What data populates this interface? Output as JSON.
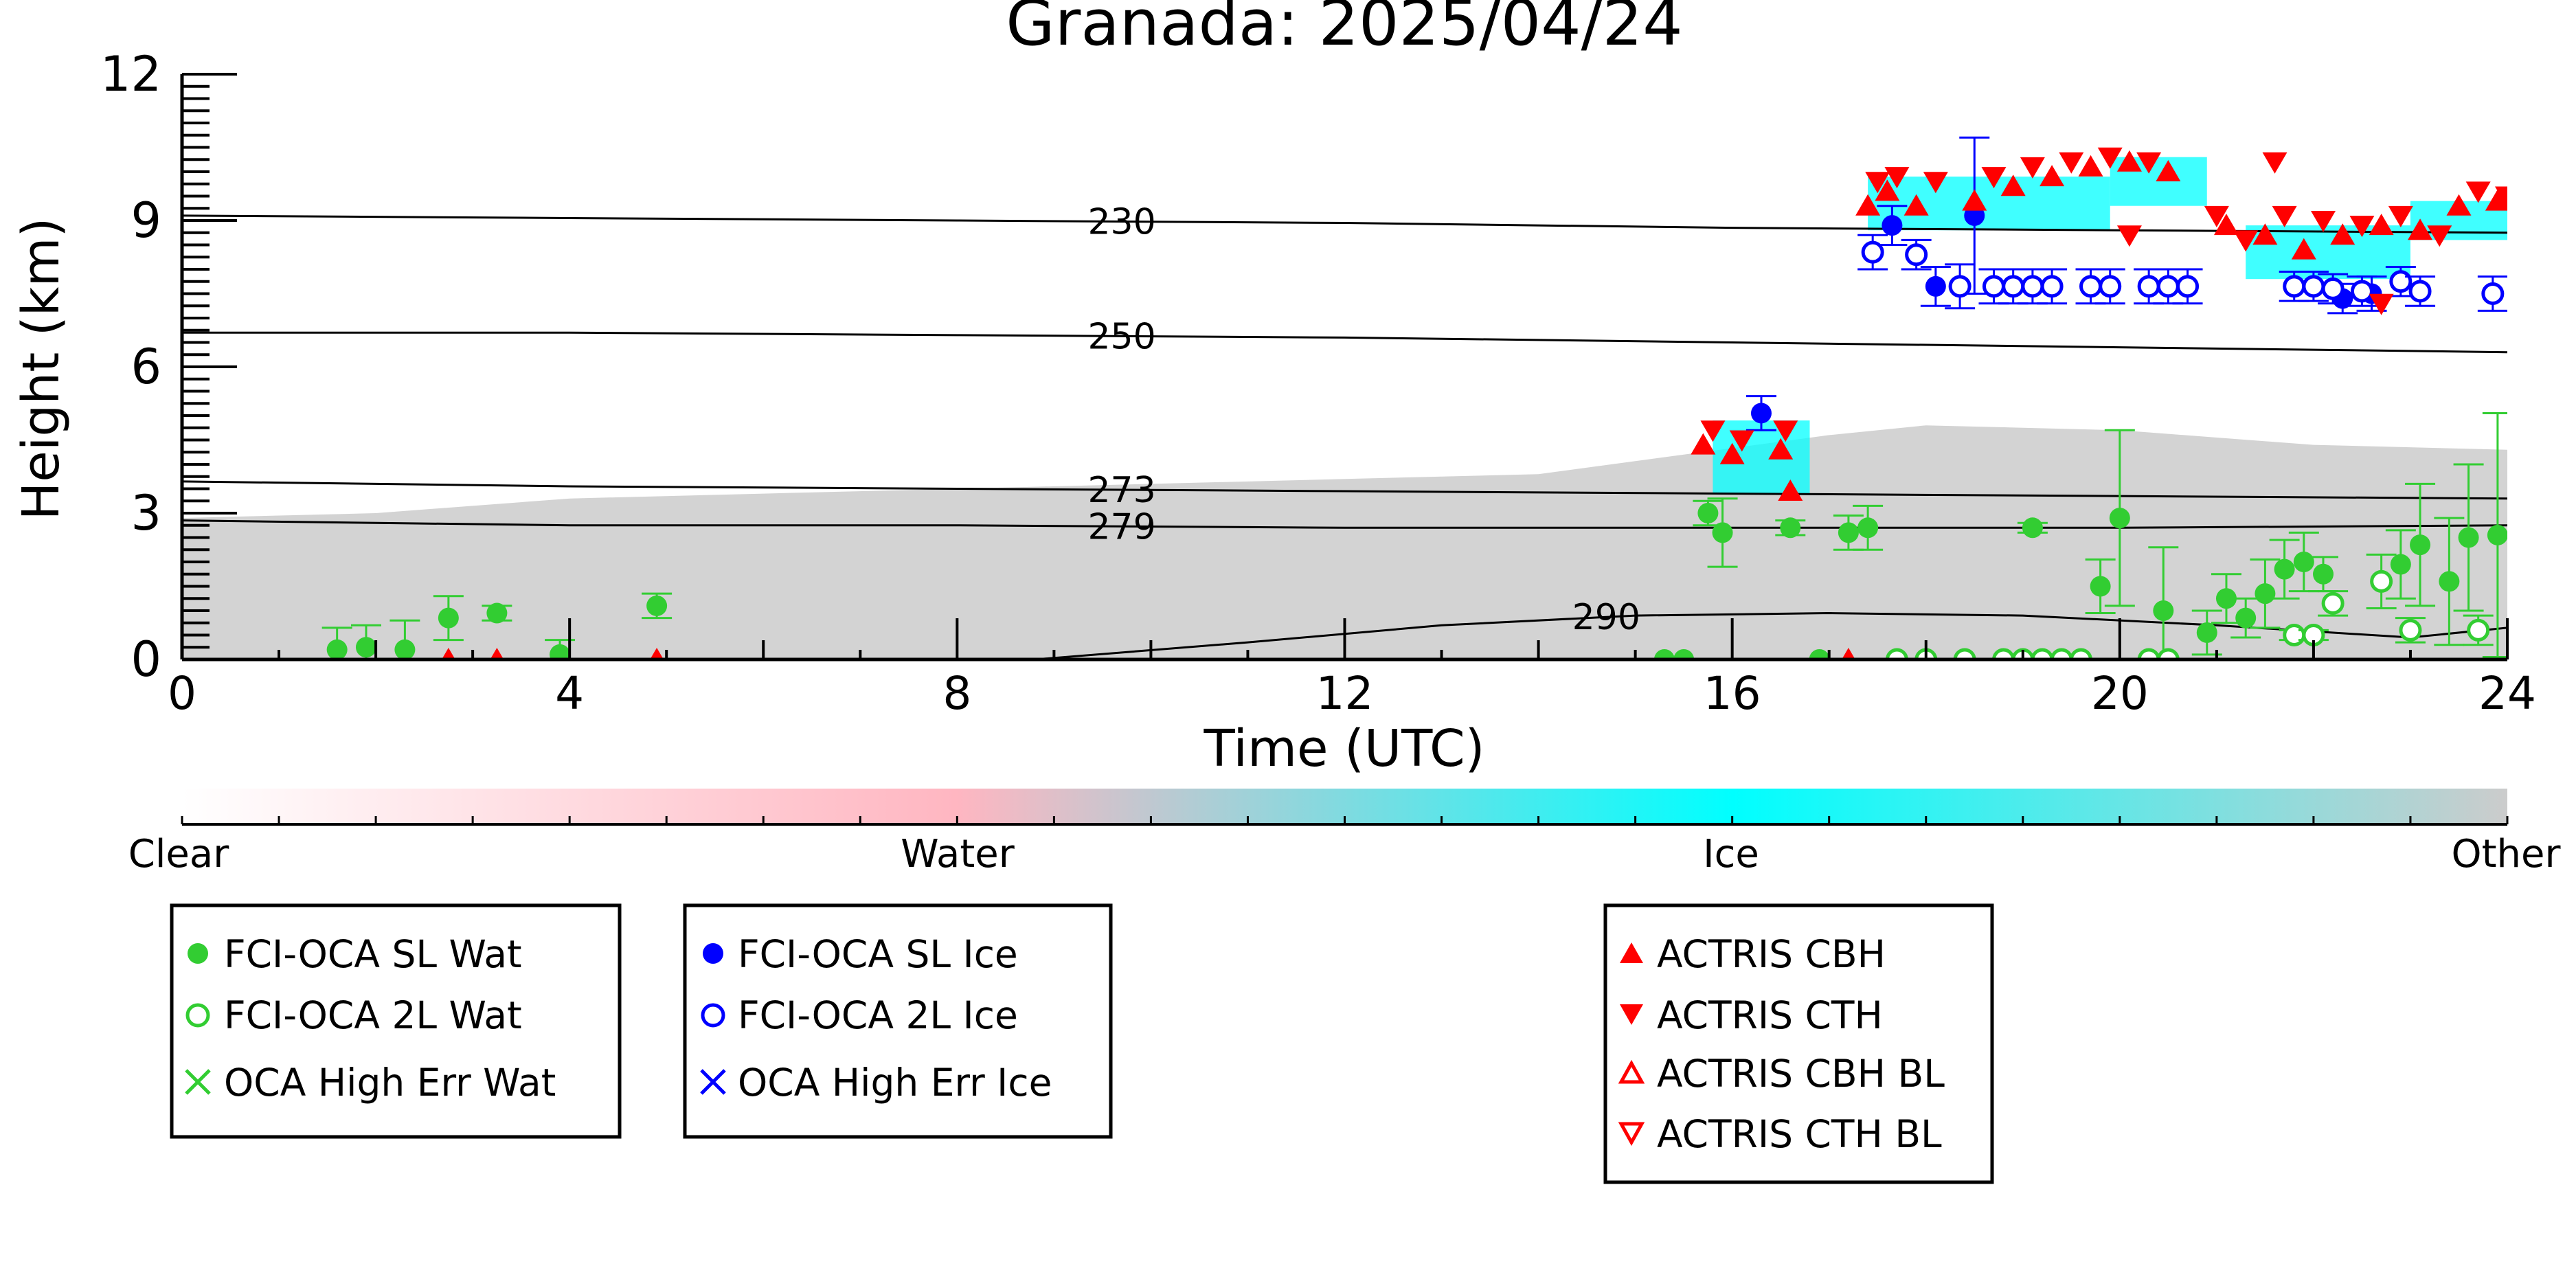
{
  "chart_data": {
    "type": "scatter",
    "title": "Granada: 2025/04/24",
    "xlabel": "Time (UTC)",
    "ylabel": "Height (km)",
    "xlim": [
      0,
      24
    ],
    "ylim": [
      0,
      12
    ],
    "x_ticks": [
      0,
      4,
      8,
      12,
      16,
      20,
      24
    ],
    "y_ticks": [
      0,
      3,
      6,
      9,
      12
    ],
    "colorbar": {
      "labels": [
        "Clear",
        "Water",
        "Ice",
        "Other"
      ],
      "colors": [
        "#ffffff",
        "#ffb6c1",
        "#00ffff",
        "#cccccc"
      ]
    },
    "background_cloud": {
      "color": "#d3d3d3",
      "top_km": [
        [
          0,
          2.9
        ],
        [
          2,
          3.0
        ],
        [
          4,
          3.3
        ],
        [
          6,
          3.4
        ],
        [
          8,
          3.5
        ],
        [
          10,
          3.6
        ],
        [
          12,
          3.7
        ],
        [
          14,
          3.8
        ],
        [
          15.5,
          4.2
        ],
        [
          17,
          4.6
        ],
        [
          18,
          4.8
        ],
        [
          20,
          4.7
        ],
        [
          22,
          4.4
        ],
        [
          24,
          4.3
        ]
      ]
    },
    "isotherms": [
      {
        "label": "230",
        "points": [
          [
            0,
            9.1
          ],
          [
            4,
            9.05
          ],
          [
            8,
            9.0
          ],
          [
            12,
            8.95
          ],
          [
            16,
            8.85
          ],
          [
            20,
            8.8
          ],
          [
            24,
            8.75
          ]
        ],
        "label_x": 9.7
      },
      {
        "label": "250",
        "points": [
          [
            0,
            6.7
          ],
          [
            4,
            6.7
          ],
          [
            8,
            6.65
          ],
          [
            12,
            6.6
          ],
          [
            16,
            6.5
          ],
          [
            20,
            6.4
          ],
          [
            24,
            6.3
          ]
        ],
        "label_x": 9.7
      },
      {
        "label": "273",
        "points": [
          [
            0,
            3.65
          ],
          [
            4,
            3.55
          ],
          [
            8,
            3.5
          ],
          [
            12,
            3.45
          ],
          [
            16,
            3.4
          ],
          [
            20,
            3.35
          ],
          [
            24,
            3.3
          ]
        ],
        "label_x": 9.7
      },
      {
        "label": "279",
        "points": [
          [
            0,
            2.85
          ],
          [
            4,
            2.75
          ],
          [
            8,
            2.75
          ],
          [
            12,
            2.7
          ],
          [
            16,
            2.7
          ],
          [
            20,
            2.7
          ],
          [
            24,
            2.75
          ]
        ],
        "label_x": 9.7
      },
      {
        "label": "290",
        "points": [
          [
            8.8,
            0
          ],
          [
            11,
            0.35
          ],
          [
            13,
            0.7
          ],
          [
            15,
            0.9
          ],
          [
            17,
            0.95
          ],
          [
            19,
            0.9
          ],
          [
            21,
            0.7
          ],
          [
            23,
            0.45
          ],
          [
            24,
            0.65
          ]
        ],
        "label_x": 14.7
      }
    ],
    "ice_clouds": [
      {
        "x": [
          17.4,
          19.9
        ],
        "y": [
          8.8,
          9.9
        ]
      },
      {
        "x": [
          19.9,
          20.9
        ],
        "y": [
          9.3,
          10.3
        ]
      },
      {
        "x": [
          21.3,
          23.0
        ],
        "y": [
          7.8,
          8.9
        ]
      },
      {
        "x": [
          23.0,
          24.0
        ],
        "y": [
          8.6,
          9.4
        ]
      },
      {
        "x": [
          15.8,
          16.8
        ],
        "y": [
          3.4,
          4.9
        ]
      }
    ],
    "series": [
      {
        "name": "FCI-OCA SL Wat",
        "color": "#32cd32",
        "marker": "circle-filled",
        "points": [
          [
            1.6,
            0.2,
            0.45
          ],
          [
            1.9,
            0.25,
            0.45
          ],
          [
            2.3,
            0.2,
            0.6
          ],
          [
            2.75,
            0.85,
            0.45
          ],
          [
            3.25,
            0.95,
            0.15
          ],
          [
            3.9,
            0.1,
            0.3
          ],
          [
            4.9,
            1.1,
            0.25
          ],
          [
            15.3,
            0,
            0
          ],
          [
            15.5,
            0,
            0
          ],
          [
            15.75,
            3.0,
            0.25
          ],
          [
            15.9,
            2.6,
            0.7
          ],
          [
            16.6,
            2.7,
            0.15
          ],
          [
            16.9,
            0,
            0
          ],
          [
            17.2,
            2.6,
            0.35
          ],
          [
            17.4,
            2.7,
            0.45
          ],
          [
            19.1,
            2.7,
            0.1
          ],
          [
            19.8,
            1.5,
            0.55
          ],
          [
            20.0,
            2.9,
            1.8
          ],
          [
            20.45,
            1.0,
            1.3
          ],
          [
            20.9,
            0.55,
            0.45
          ],
          [
            21.1,
            1.25,
            0.5
          ],
          [
            21.3,
            0.85,
            0.4
          ],
          [
            21.5,
            1.35,
            0.7
          ],
          [
            21.7,
            1.85,
            0.6
          ],
          [
            21.9,
            2.0,
            0.6
          ],
          [
            22.1,
            1.75,
            0.35
          ],
          [
            22.9,
            1.95,
            0.7
          ],
          [
            23.1,
            2.35,
            1.25
          ],
          [
            23.4,
            1.6,
            1.3
          ],
          [
            23.6,
            2.5,
            1.5
          ],
          [
            23.9,
            2.55,
            2.5
          ]
        ]
      },
      {
        "name": "FCI-OCA 2L Wat",
        "color": "#32cd32",
        "marker": "circle-open",
        "points": [
          [
            17.7,
            0,
            0
          ],
          [
            18.0,
            0,
            0
          ],
          [
            18.4,
            0,
            0
          ],
          [
            18.8,
            0,
            0
          ],
          [
            19.0,
            0,
            0
          ],
          [
            19.2,
            0,
            0
          ],
          [
            19.4,
            0,
            0
          ],
          [
            19.6,
            0,
            0
          ],
          [
            20.3,
            0,
            0
          ],
          [
            20.5,
            0,
            0
          ],
          [
            21.8,
            0.5,
            0.1
          ],
          [
            22.0,
            0.5,
            0.1
          ],
          [
            22.2,
            1.15,
            0.25
          ],
          [
            22.7,
            1.6,
            0.55
          ],
          [
            23.0,
            0.6,
            0.25
          ],
          [
            23.7,
            0.6,
            0.3
          ]
        ]
      },
      {
        "name": "OCA High Err Wat",
        "color": "#32cd32",
        "marker": "x",
        "points": []
      },
      {
        "name": "FCI-OCA SL Ice",
        "color": "#0000ff",
        "marker": "circle-filled",
        "points": [
          [
            16.3,
            5.05,
            0.35
          ],
          [
            17.65,
            8.9,
            0.4
          ],
          [
            18.1,
            7.65,
            0.4
          ],
          [
            18.5,
            9.1,
            1.6
          ],
          [
            22.3,
            7.4,
            0.3
          ],
          [
            22.6,
            7.5,
            0.35
          ]
        ]
      },
      {
        "name": "FCI-OCA 2L Ice",
        "color": "#0000ff",
        "marker": "circle-open",
        "points": [
          [
            17.45,
            8.35,
            0.35
          ],
          [
            17.9,
            8.3,
            0.3
          ],
          [
            18.35,
            7.65,
            0.45
          ],
          [
            18.7,
            7.65,
            0.35
          ],
          [
            18.9,
            7.65,
            0.35
          ],
          [
            19.1,
            7.65,
            0.35
          ],
          [
            19.3,
            7.65,
            0.35
          ],
          [
            19.7,
            7.65,
            0.35
          ],
          [
            19.9,
            7.65,
            0.35
          ],
          [
            20.3,
            7.65,
            0.35
          ],
          [
            20.5,
            7.65,
            0.35
          ],
          [
            20.7,
            7.65,
            0.35
          ],
          [
            21.8,
            7.65,
            0.3
          ],
          [
            22.0,
            7.65,
            0.3
          ],
          [
            22.2,
            7.6,
            0.3
          ],
          [
            22.5,
            7.55,
            0.3
          ],
          [
            22.9,
            7.75,
            0.3
          ],
          [
            23.1,
            7.55,
            0.3
          ],
          [
            23.85,
            7.5,
            0.35
          ]
        ]
      },
      {
        "name": "OCA High Err Ice",
        "color": "#0000ff",
        "marker": "x",
        "points": []
      },
      {
        "name": "ACTRIS CBH",
        "color": "#ff0000",
        "marker": "triangle-up",
        "points": [
          [
            2.75,
            0,
            0
          ],
          [
            3.25,
            0,
            0
          ],
          [
            4.9,
            0,
            0
          ],
          [
            16.6,
            3.45,
            0
          ],
          [
            17.2,
            0,
            0
          ],
          [
            17.4,
            9.3,
            0
          ],
          [
            17.6,
            9.6,
            0
          ],
          [
            17.9,
            9.3,
            0
          ],
          [
            18.5,
            9.4,
            0
          ],
          [
            18.9,
            9.7,
            0
          ],
          [
            19.3,
            9.9,
            0
          ],
          [
            19.7,
            10.1,
            0
          ],
          [
            20.1,
            10.2,
            0
          ],
          [
            20.5,
            10.0,
            0
          ],
          [
            21.1,
            8.9,
            0
          ],
          [
            21.5,
            8.7,
            0
          ],
          [
            21.9,
            8.4,
            0
          ],
          [
            22.3,
            8.7,
            0
          ],
          [
            22.7,
            8.9,
            0
          ],
          [
            23.1,
            8.8,
            0
          ],
          [
            23.5,
            9.3,
            0
          ],
          [
            23.9,
            9.4,
            0
          ],
          [
            15.7,
            4.4,
            0
          ],
          [
            16.0,
            4.2,
            0
          ],
          [
            16.5,
            4.3,
            0
          ]
        ]
      },
      {
        "name": "ACTRIS CTH",
        "color": "#ff0000",
        "marker": "triangle-down",
        "points": [
          [
            17.5,
            9.8,
            0
          ],
          [
            17.7,
            9.9,
            0
          ],
          [
            18.1,
            9.8,
            0
          ],
          [
            18.7,
            9.9,
            0
          ],
          [
            19.1,
            10.1,
            0
          ],
          [
            19.5,
            10.2,
            0
          ],
          [
            19.9,
            10.3,
            0
          ],
          [
            20.3,
            10.2,
            0
          ],
          [
            21.0,
            9.1,
            0
          ],
          [
            21.3,
            8.6,
            0
          ],
          [
            21.7,
            9.1,
            0
          ],
          [
            21.6,
            10.2,
            0
          ],
          [
            22.1,
            9.0,
            0
          ],
          [
            22.5,
            8.9,
            0
          ],
          [
            22.9,
            9.1,
            0
          ],
          [
            23.3,
            8.7,
            0
          ],
          [
            23.7,
            9.6,
            0
          ],
          [
            24.0,
            9.5,
            0
          ],
          [
            15.8,
            4.7,
            0
          ],
          [
            16.1,
            4.5,
            0
          ],
          [
            16.55,
            4.7,
            0
          ],
          [
            20.1,
            8.7,
            0
          ],
          [
            22.7,
            7.3,
            0
          ]
        ]
      },
      {
        "name": "ACTRIS CBH BL",
        "color": "#ff0000",
        "marker": "triangle-up-open",
        "points": []
      },
      {
        "name": "ACTRIS CTH BL",
        "color": "#ff0000",
        "marker": "triangle-down-open",
        "points": []
      }
    ],
    "legend": [
      {
        "box": "left",
        "entries": [
          "FCI-OCA SL Wat",
          "FCI-OCA 2L Wat",
          "OCA High Err Wat"
        ]
      },
      {
        "box": "middle",
        "entries": [
          "FCI-OCA SL Ice",
          "FCI-OCA 2L Ice",
          "OCA High Err Ice"
        ]
      },
      {
        "box": "right",
        "entries": [
          "ACTRIS CBH",
          "ACTRIS CTH",
          "ACTRIS CBH BL",
          "ACTRIS CTH BL"
        ]
      }
    ]
  }
}
